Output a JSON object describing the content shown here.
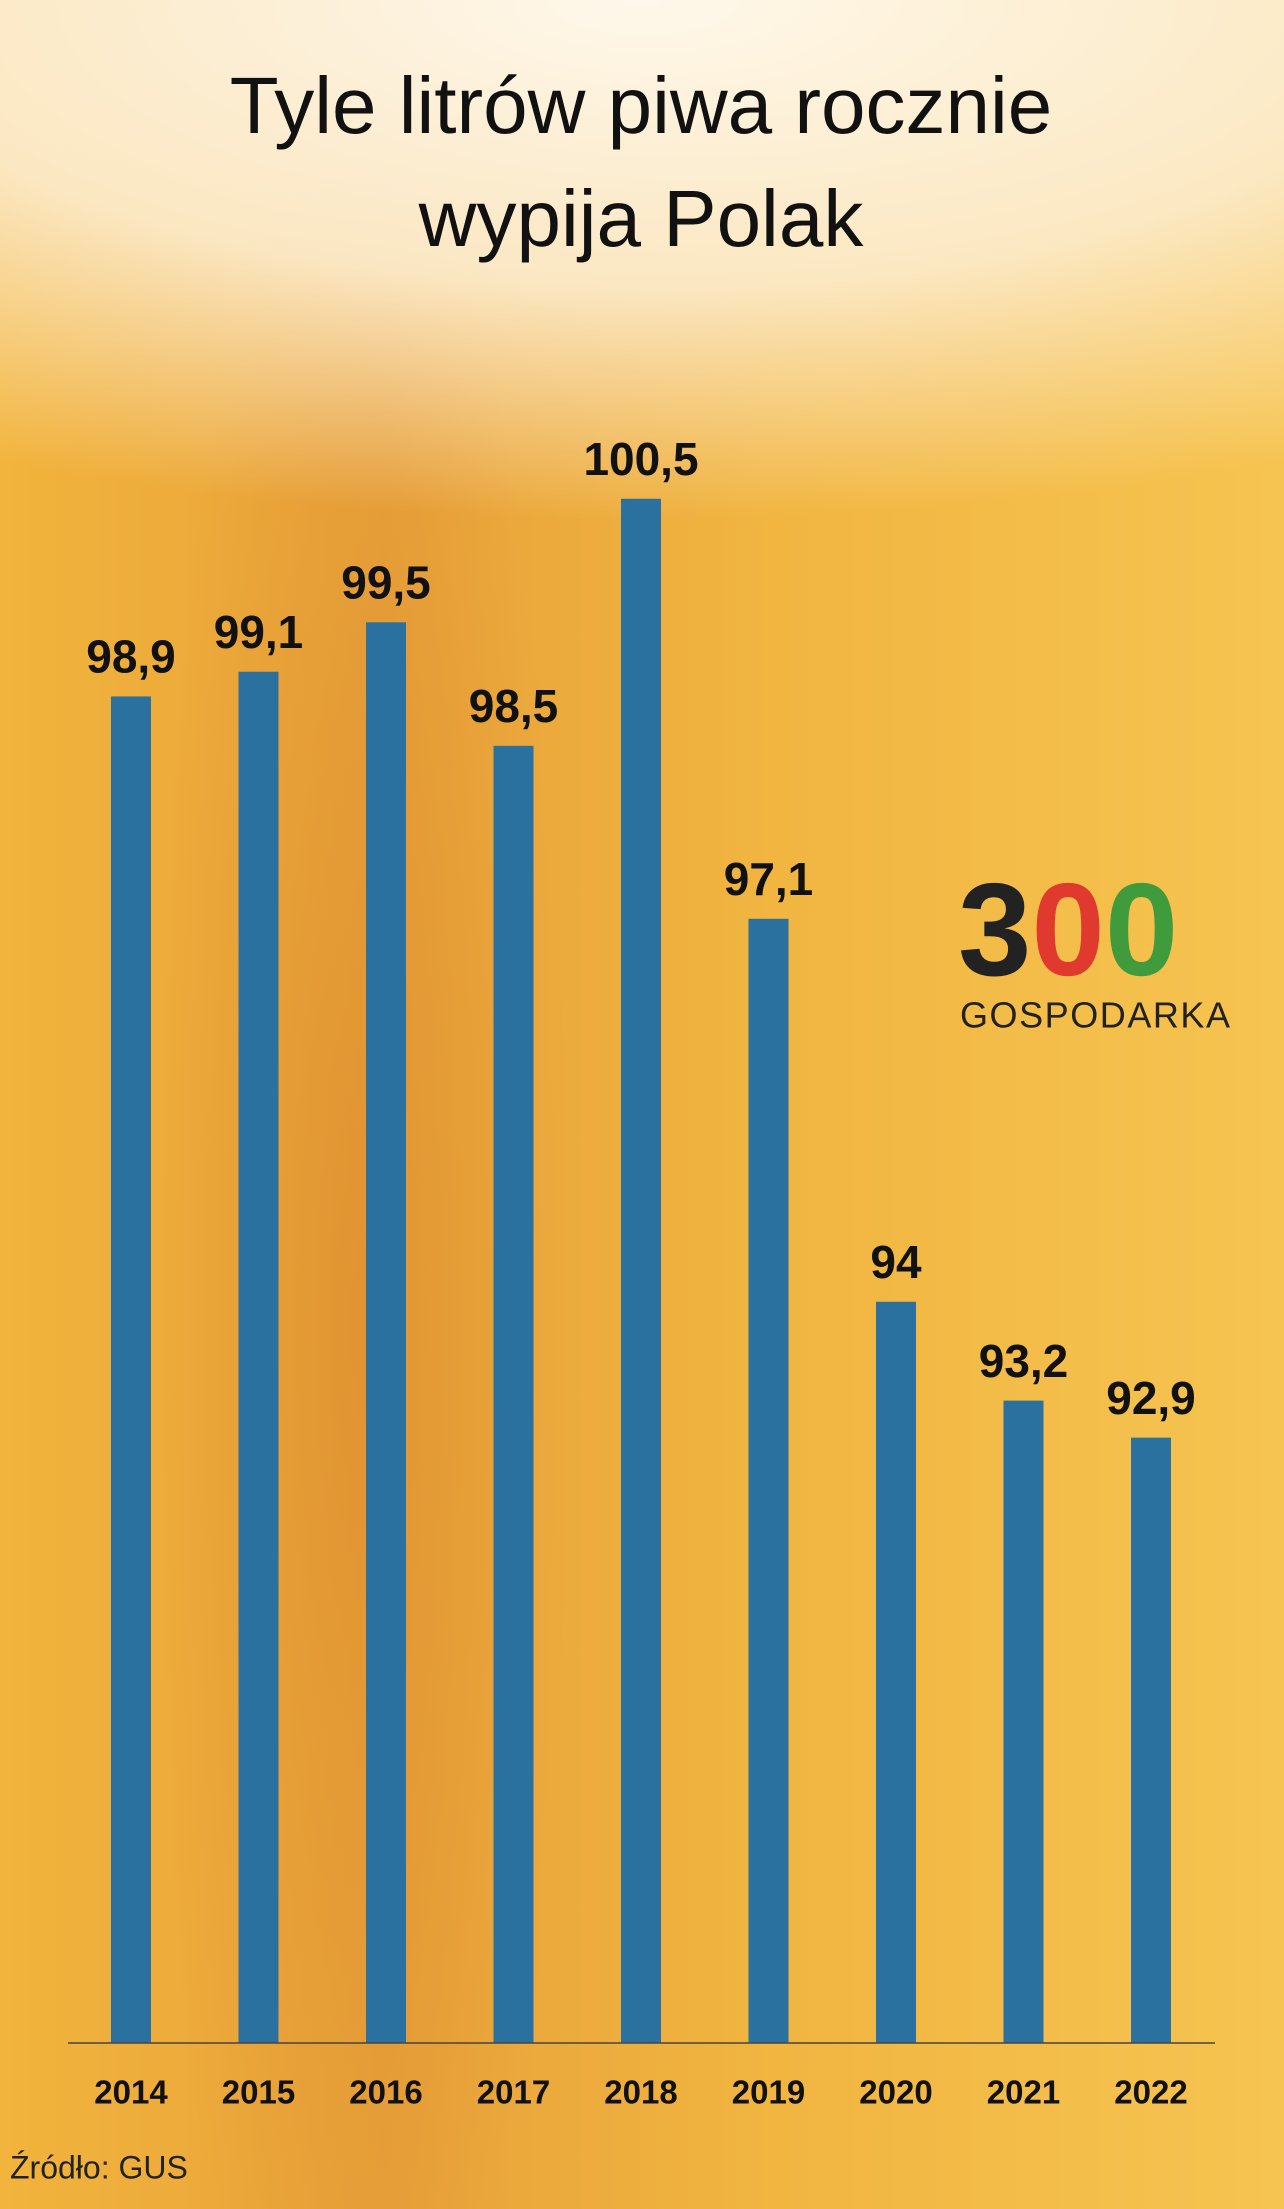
{
  "chart_data": {
    "type": "bar",
    "title": [
      "Tyle litrów piwa rocznie",
      "wypija Polak"
    ],
    "categories": [
      "2014",
      "2015",
      "2016",
      "2017",
      "2018",
      "2019",
      "2020",
      "2021",
      "2022"
    ],
    "values": [
      98.9,
      99.1,
      99.5,
      98.5,
      100.5,
      97.1,
      94,
      93.2,
      92.9
    ],
    "value_labels": [
      "98,9",
      "99,1",
      "99,5",
      "98,5",
      "100,5",
      "97,1",
      "94",
      "93,2",
      "92,9"
    ],
    "color": "#2b71a0",
    "ylim": [
      88,
      101
    ],
    "source": "Źródło: GUS",
    "logo": {
      "digits": [
        "3",
        "0",
        "0"
      ],
      "name": "GOSPODARKA"
    }
  }
}
